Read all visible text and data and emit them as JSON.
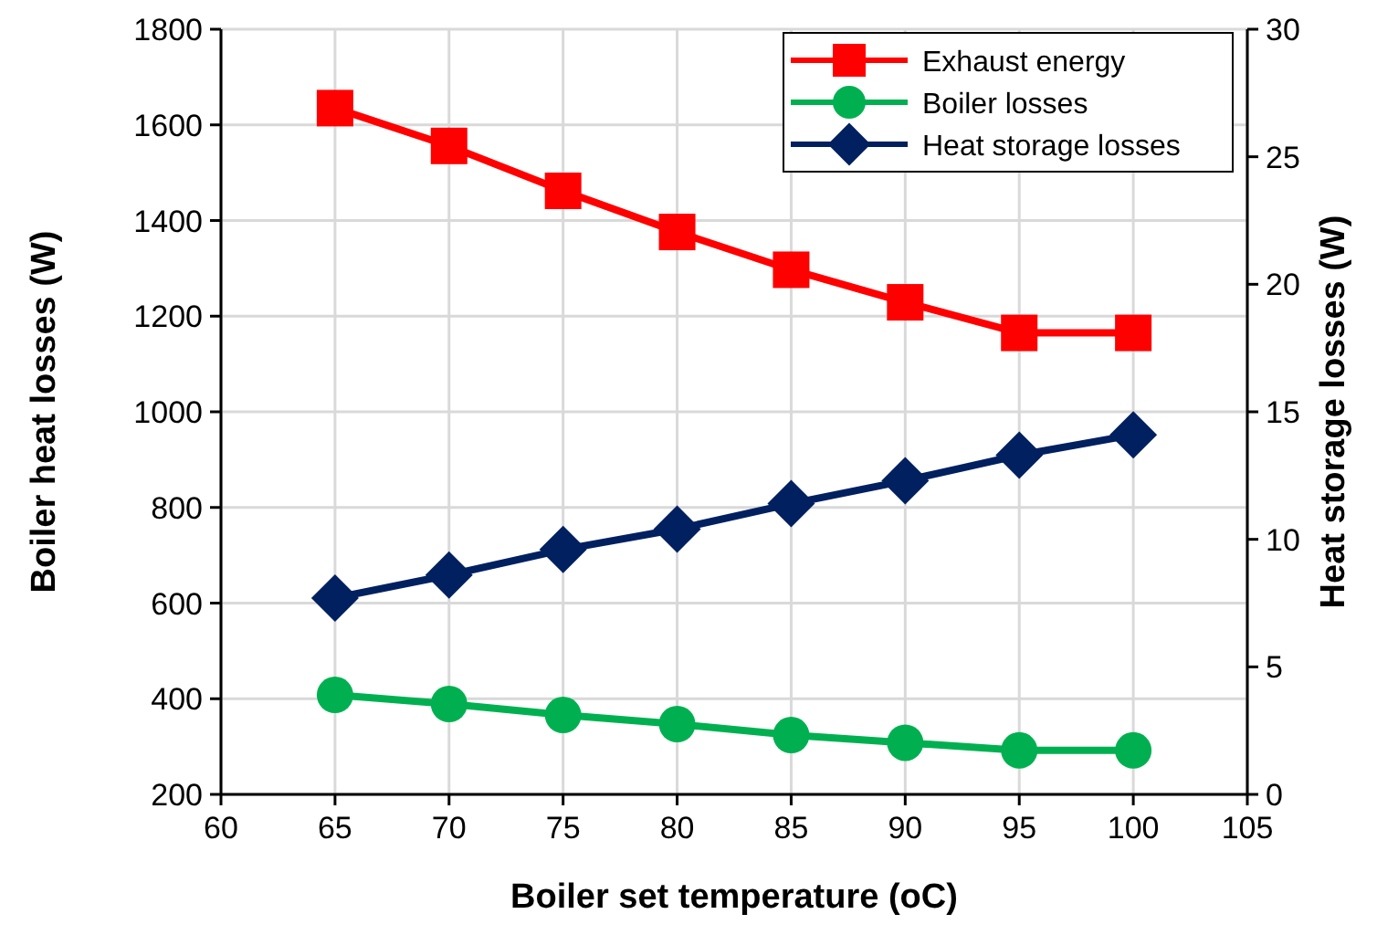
{
  "chart_data": {
    "type": "line",
    "xlabel": "Boiler set temperature (oC)",
    "ylabel": "Boiler heat losses (W)",
    "y2label": "Heat storage losses (W)",
    "x": [
      65,
      70,
      75,
      80,
      85,
      90,
      95,
      100
    ],
    "series": [
      {
        "name": "Exhaust energy",
        "color": "#ff0000",
        "marker": "square",
        "values": [
          1635,
          1556,
          1462,
          1376,
          1297,
          1229,
          1165,
          1165
        ]
      },
      {
        "name": "Boiler losses",
        "color": "#00b050",
        "marker": "circle",
        "values": [
          408,
          389,
          366,
          347,
          324,
          308,
          292,
          292
        ]
      },
      {
        "name": "Heat storage losses",
        "color": "#002060",
        "marker": "diamond",
        "axis": "y2",
        "values": [
          7.7,
          8.6,
          9.6,
          10.4,
          11.4,
          12.3,
          13.3,
          14.1
        ]
      }
    ],
    "xlim": [
      60,
      105
    ],
    "xticks": [
      60,
      65,
      70,
      75,
      80,
      85,
      90,
      95,
      100,
      105
    ],
    "ylim": [
      200,
      1800
    ],
    "yticks": [
      200,
      400,
      600,
      800,
      1000,
      1200,
      1400,
      1600,
      1800
    ],
    "y2lim": [
      0,
      30
    ],
    "y2ticks": [
      0,
      5,
      10,
      15,
      20,
      25,
      30
    ],
    "grid": true,
    "legend": "top right"
  }
}
